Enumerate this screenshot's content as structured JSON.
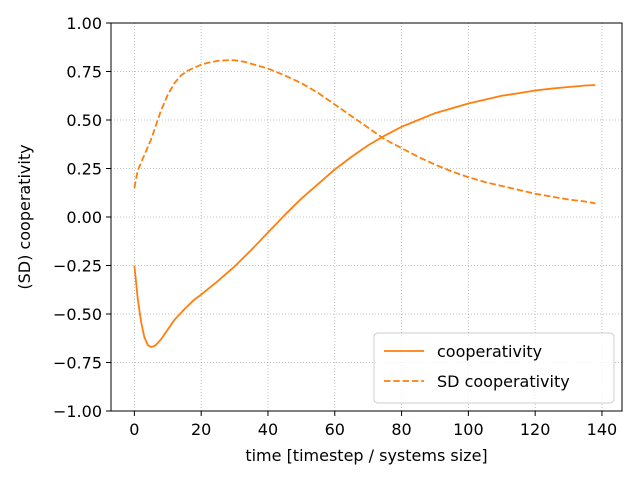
{
  "chart_data": {
    "type": "line",
    "title": "",
    "xlabel": "time [timestep / systems size]",
    "ylabel": "(SD) cooperativity",
    "xlim": [
      -7,
      146
    ],
    "ylim": [
      -1.0,
      1.0
    ],
    "xticks": [
      0,
      20,
      40,
      60,
      80,
      100,
      120,
      140
    ],
    "xtick_labels": [
      "0",
      "20",
      "40",
      "60",
      "80",
      "100",
      "120",
      "140"
    ],
    "yticks": [
      -1.0,
      -0.75,
      -0.5,
      -0.25,
      0.0,
      0.25,
      0.5,
      0.75,
      1.0
    ],
    "ytick_labels": [
      "−1.00",
      "−0.75",
      "−0.50",
      "−0.25",
      "0.00",
      "0.25",
      "0.50",
      "0.75",
      "1.00"
    ],
    "grid": true,
    "legend": {
      "position": "lower-right"
    },
    "series": [
      {
        "name": "cooperativity",
        "color": "#ff7f0e",
        "linestyle": "solid",
        "x": [
          0,
          1,
          2,
          3,
          4,
          5,
          6,
          7,
          8,
          10,
          12,
          15,
          18,
          20,
          25,
          30,
          35,
          40,
          45,
          50,
          55,
          60,
          65,
          70,
          75,
          80,
          85,
          90,
          95,
          100,
          105,
          110,
          115,
          120,
          125,
          130,
          135,
          138
        ],
        "y": [
          -0.25,
          -0.42,
          -0.54,
          -0.62,
          -0.66,
          -0.67,
          -0.665,
          -0.65,
          -0.63,
          -0.58,
          -0.53,
          -0.475,
          -0.425,
          -0.4,
          -0.33,
          -0.255,
          -0.17,
          -0.08,
          0.01,
          0.095,
          0.17,
          0.245,
          0.31,
          0.37,
          0.42,
          0.465,
          0.5,
          0.535,
          0.56,
          0.585,
          0.605,
          0.625,
          0.638,
          0.652,
          0.662,
          0.67,
          0.678,
          0.68
        ]
      },
      {
        "name": "SD cooperativity",
        "color": "#ff7f0e",
        "linestyle": "dashed",
        "x": [
          0,
          1,
          2,
          3,
          4,
          5,
          6,
          8,
          10,
          12,
          14,
          16,
          18,
          20,
          22,
          25,
          28,
          30,
          33,
          36,
          40,
          45,
          50,
          55,
          60,
          65,
          70,
          75,
          80,
          85,
          90,
          95,
          100,
          105,
          110,
          115,
          120,
          125,
          130,
          135,
          138
        ],
        "y": [
          0.15,
          0.24,
          0.28,
          0.32,
          0.36,
          0.4,
          0.45,
          0.55,
          0.63,
          0.69,
          0.73,
          0.755,
          0.77,
          0.785,
          0.795,
          0.805,
          0.808,
          0.808,
          0.8,
          0.785,
          0.765,
          0.73,
          0.69,
          0.64,
          0.58,
          0.52,
          0.46,
          0.4,
          0.355,
          0.31,
          0.27,
          0.235,
          0.205,
          0.18,
          0.16,
          0.14,
          0.12,
          0.105,
          0.09,
          0.08,
          0.07
        ]
      }
    ]
  }
}
